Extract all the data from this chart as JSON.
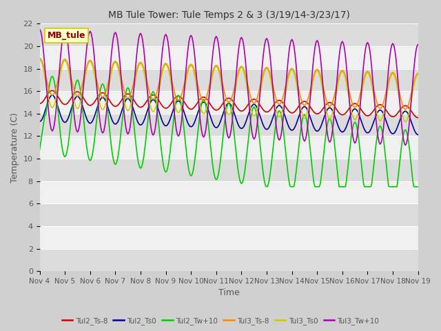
{
  "title": "MB Tule Tower: Tule Temps 2 & 3 (3/19/14-3/23/17)",
  "xlabel": "Time",
  "ylabel": "Temperature (C)",
  "ylim": [
    0,
    22
  ],
  "yticks": [
    0,
    2,
    4,
    6,
    8,
    10,
    12,
    14,
    16,
    18,
    20,
    22
  ],
  "xtick_labels": [
    "Nov 4",
    "Nov 5",
    "Nov 6",
    "Nov 7",
    "Nov 8",
    "Nov 9",
    "Nov 10",
    "Nov 11",
    "Nov 12",
    "Nov 13",
    "Nov 14",
    "Nov 15",
    "Nov 16",
    "Nov 17",
    "Nov 18",
    "Nov 19"
  ],
  "n_days": 15,
  "series": [
    {
      "label": "Tul2_Ts-8",
      "color": "#cc0000"
    },
    {
      "label": "Tul2_Ts0",
      "color": "#000099"
    },
    {
      "label": "Tul2_Tw+10",
      "color": "#00cc00"
    },
    {
      "label": "Tul3_Ts-8",
      "color": "#ff8800"
    },
    {
      "label": "Tul3_Ts0",
      "color": "#cccc00"
    },
    {
      "label": "Tul3_Tw+10",
      "color": "#aa00aa"
    }
  ],
  "annotation_text": "MB_tule",
  "annotation_color": "#8b0000",
  "annotation_bg": "#ffffcc",
  "annotation_border": "#cccc00",
  "fig_bg": "#d0d0d0",
  "plot_bg": "#f0f0f0",
  "stripe_color": "#dcdcdc",
  "grid_color": "#ffffff"
}
